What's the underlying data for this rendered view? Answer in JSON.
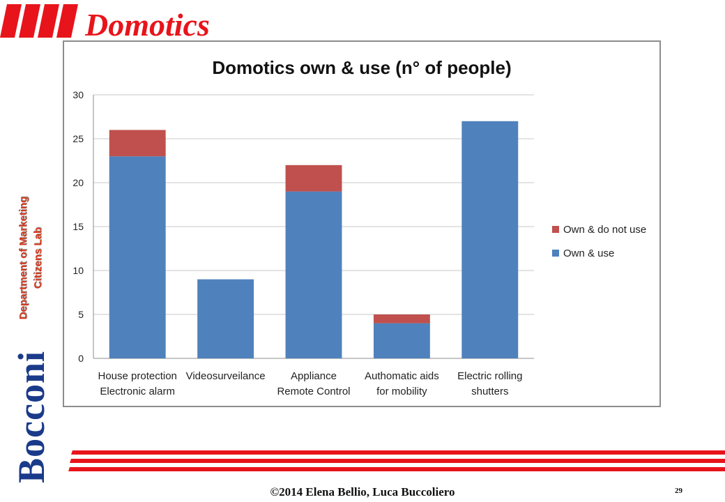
{
  "slide": {
    "title": "Domotics",
    "side_label_line1": "Department of Marketing",
    "side_label_line2": "Citizens Lab",
    "brand": "Bocconi",
    "copyright": "©2014  Elena Bellio, Luca Buccoliero",
    "page_number": "29",
    "accent_color": "#e8141b"
  },
  "chart_data": {
    "type": "bar",
    "stacked": true,
    "title": "Domotics own & use (n° of people)",
    "categories": [
      [
        "House protection",
        "Electronic alarm"
      ],
      [
        "Videosurveilance"
      ],
      [
        "Appliance",
        "Remote Control"
      ],
      [
        "Authomatic aids",
        "for mobility"
      ],
      [
        "Electric rolling",
        "shutters"
      ]
    ],
    "series": [
      {
        "name": "Own & use",
        "values": [
          23,
          9,
          19,
          4,
          27
        ],
        "color": "#4f81bd"
      },
      {
        "name": "Own & do not use",
        "values": [
          3,
          0,
          3,
          1,
          0
        ],
        "color": "#c0504d"
      }
    ],
    "ylim": [
      0,
      30
    ],
    "yticks": [
      0,
      5,
      10,
      15,
      20,
      25,
      30
    ],
    "grid": true,
    "legend": "right"
  }
}
